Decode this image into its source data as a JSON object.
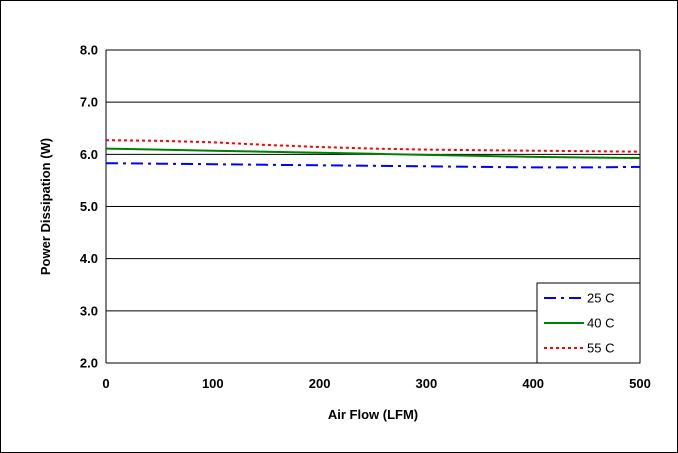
{
  "chart_data": {
    "type": "line",
    "title": "",
    "xlabel": "Air Flow (LFM)",
    "ylabel": "Power Dissipation (W)",
    "xlim": [
      0,
      500
    ],
    "ylim": [
      2.0,
      8.0
    ],
    "x_ticks": [
      "0",
      "100",
      "200",
      "300",
      "400",
      "500"
    ],
    "y_ticks": [
      "2.0",
      "3.0",
      "4.0",
      "5.0",
      "6.0",
      "7.0",
      "8.0"
    ],
    "grid": "horizontal",
    "legend_position": "bottom-right",
    "x": [
      0,
      50,
      100,
      150,
      200,
      250,
      300,
      350,
      400,
      450,
      500
    ],
    "series": [
      {
        "name": "25 C",
        "color": "#0000FF",
        "dash": "dash-dot",
        "values": [
          5.83,
          5.82,
          5.81,
          5.8,
          5.79,
          5.78,
          5.77,
          5.76,
          5.75,
          5.75,
          5.76
        ]
      },
      {
        "name": "40 C",
        "color": "#008000",
        "dash": "solid",
        "values": [
          6.11,
          6.09,
          6.07,
          6.05,
          6.03,
          6.01,
          5.99,
          5.97,
          5.95,
          5.94,
          5.93
        ]
      },
      {
        "name": "55 C",
        "color": "#FF0000",
        "dash": "dotted",
        "values": [
          6.27,
          6.26,
          6.23,
          6.18,
          6.14,
          6.11,
          6.09,
          6.08,
          6.07,
          6.06,
          6.05
        ]
      }
    ]
  }
}
